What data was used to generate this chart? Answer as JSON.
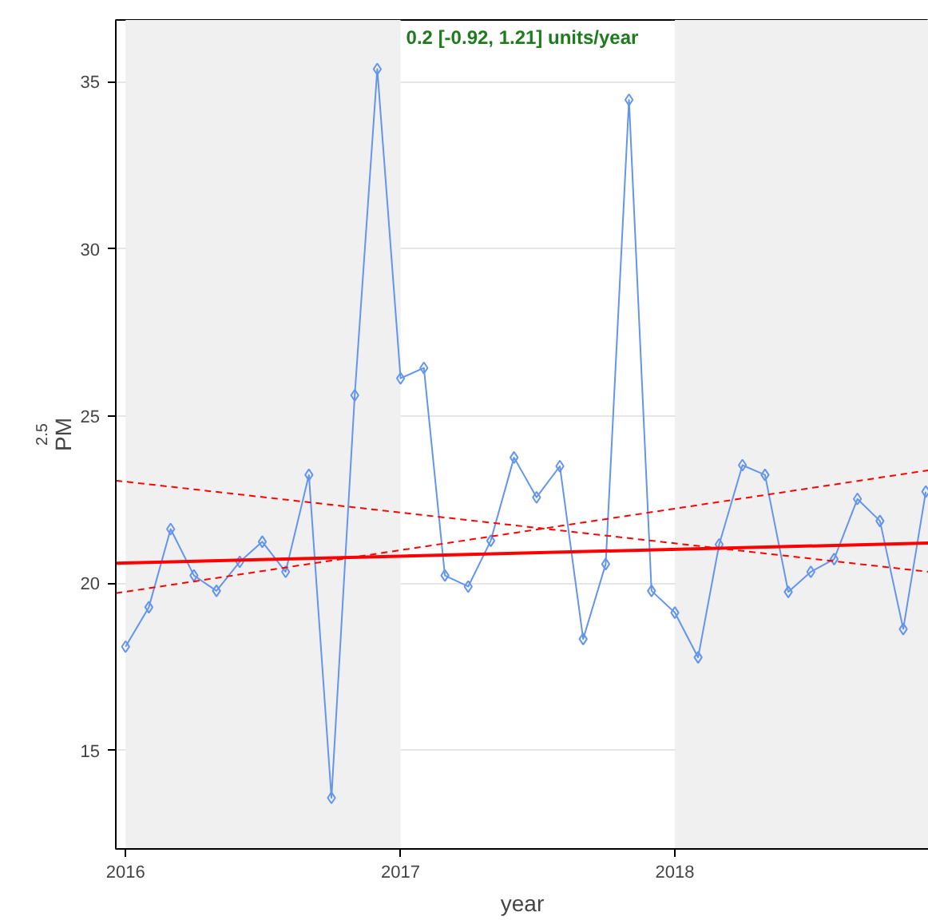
{
  "chart_data": {
    "type": "line",
    "xlabel": "year",
    "ylabel": "PM$_{2.5}$",
    "annotations": [
      "0.2 [-0.92, 1.21] units/year"
    ],
    "xlim": [
      "2015-12-19",
      "2018-12-05"
    ],
    "ylim": [
      12.05,
      36.85
    ],
    "xticks": [
      "2016",
      "2017",
      "2018"
    ],
    "yticks": [
      15,
      20,
      25,
      30,
      35
    ],
    "grid": "y",
    "marker": "diamond",
    "x": [
      "2016-01",
      "2016-02",
      "2016-03",
      "2016-04",
      "2016-05",
      "2016-06",
      "2016-07",
      "2016-08",
      "2016-09",
      "2016-10",
      "2016-11",
      "2016-12",
      "2017-01",
      "2017-02",
      "2017-03",
      "2017-04",
      "2017-05",
      "2017-06",
      "2017-07",
      "2017-08",
      "2017-09",
      "2017-10",
      "2017-11",
      "2017-12",
      "2018-01",
      "2018-02",
      "2018-03",
      "2018-04",
      "2018-05",
      "2018-06",
      "2018-07",
      "2018-08",
      "2018-09",
      "2018-10",
      "2018-11",
      "2018-12"
    ],
    "bands": [
      {
        "axis": "x",
        "from": "2016-01-01",
        "to": "2017-01-01",
        "color": "#f0f0f0"
      },
      {
        "axis": "x",
        "from": "2018-01-01",
        "to": "2018-12-05",
        "color": "#f0f0f0"
      }
    ],
    "series": [
      {
        "color": "#6495ed",
        "values": [
          18.1,
          19.28,
          21.62,
          20.23,
          19.77,
          20.64,
          21.24,
          20.34,
          23.24,
          13.58,
          25.62,
          35.38,
          26.13,
          26.44,
          20.23,
          19.9,
          21.27,
          23.76,
          22.57,
          23.5,
          18.33,
          20.57,
          34.46,
          19.77,
          19.12,
          17.78,
          21.16,
          23.53,
          23.24,
          19.74,
          20.34,
          20.72,
          22.52,
          21.86,
          18.63,
          22.74
        ]
      },
      {
        "type": "line",
        "color": "#ff0000",
        "line_style": "solid",
        "marker": "none",
        "x": [
          "2015-12-19",
          "2018-12-05"
        ],
        "values": [
          20.6,
          21.2
        ]
      },
      {
        "type": "line",
        "color": "#ff0000",
        "line_style": "dashed",
        "marker": "none",
        "x": [
          "2015-12-19",
          "2018-12-05"
        ],
        "values": [
          19.7,
          23.38
        ]
      },
      {
        "type": "line",
        "color": "#ff0000",
        "line_style": "dashed",
        "marker": "none",
        "x": [
          "2015-12-19",
          "2018-12-05"
        ],
        "values": [
          23.07,
          20.34
        ]
      }
    ]
  }
}
